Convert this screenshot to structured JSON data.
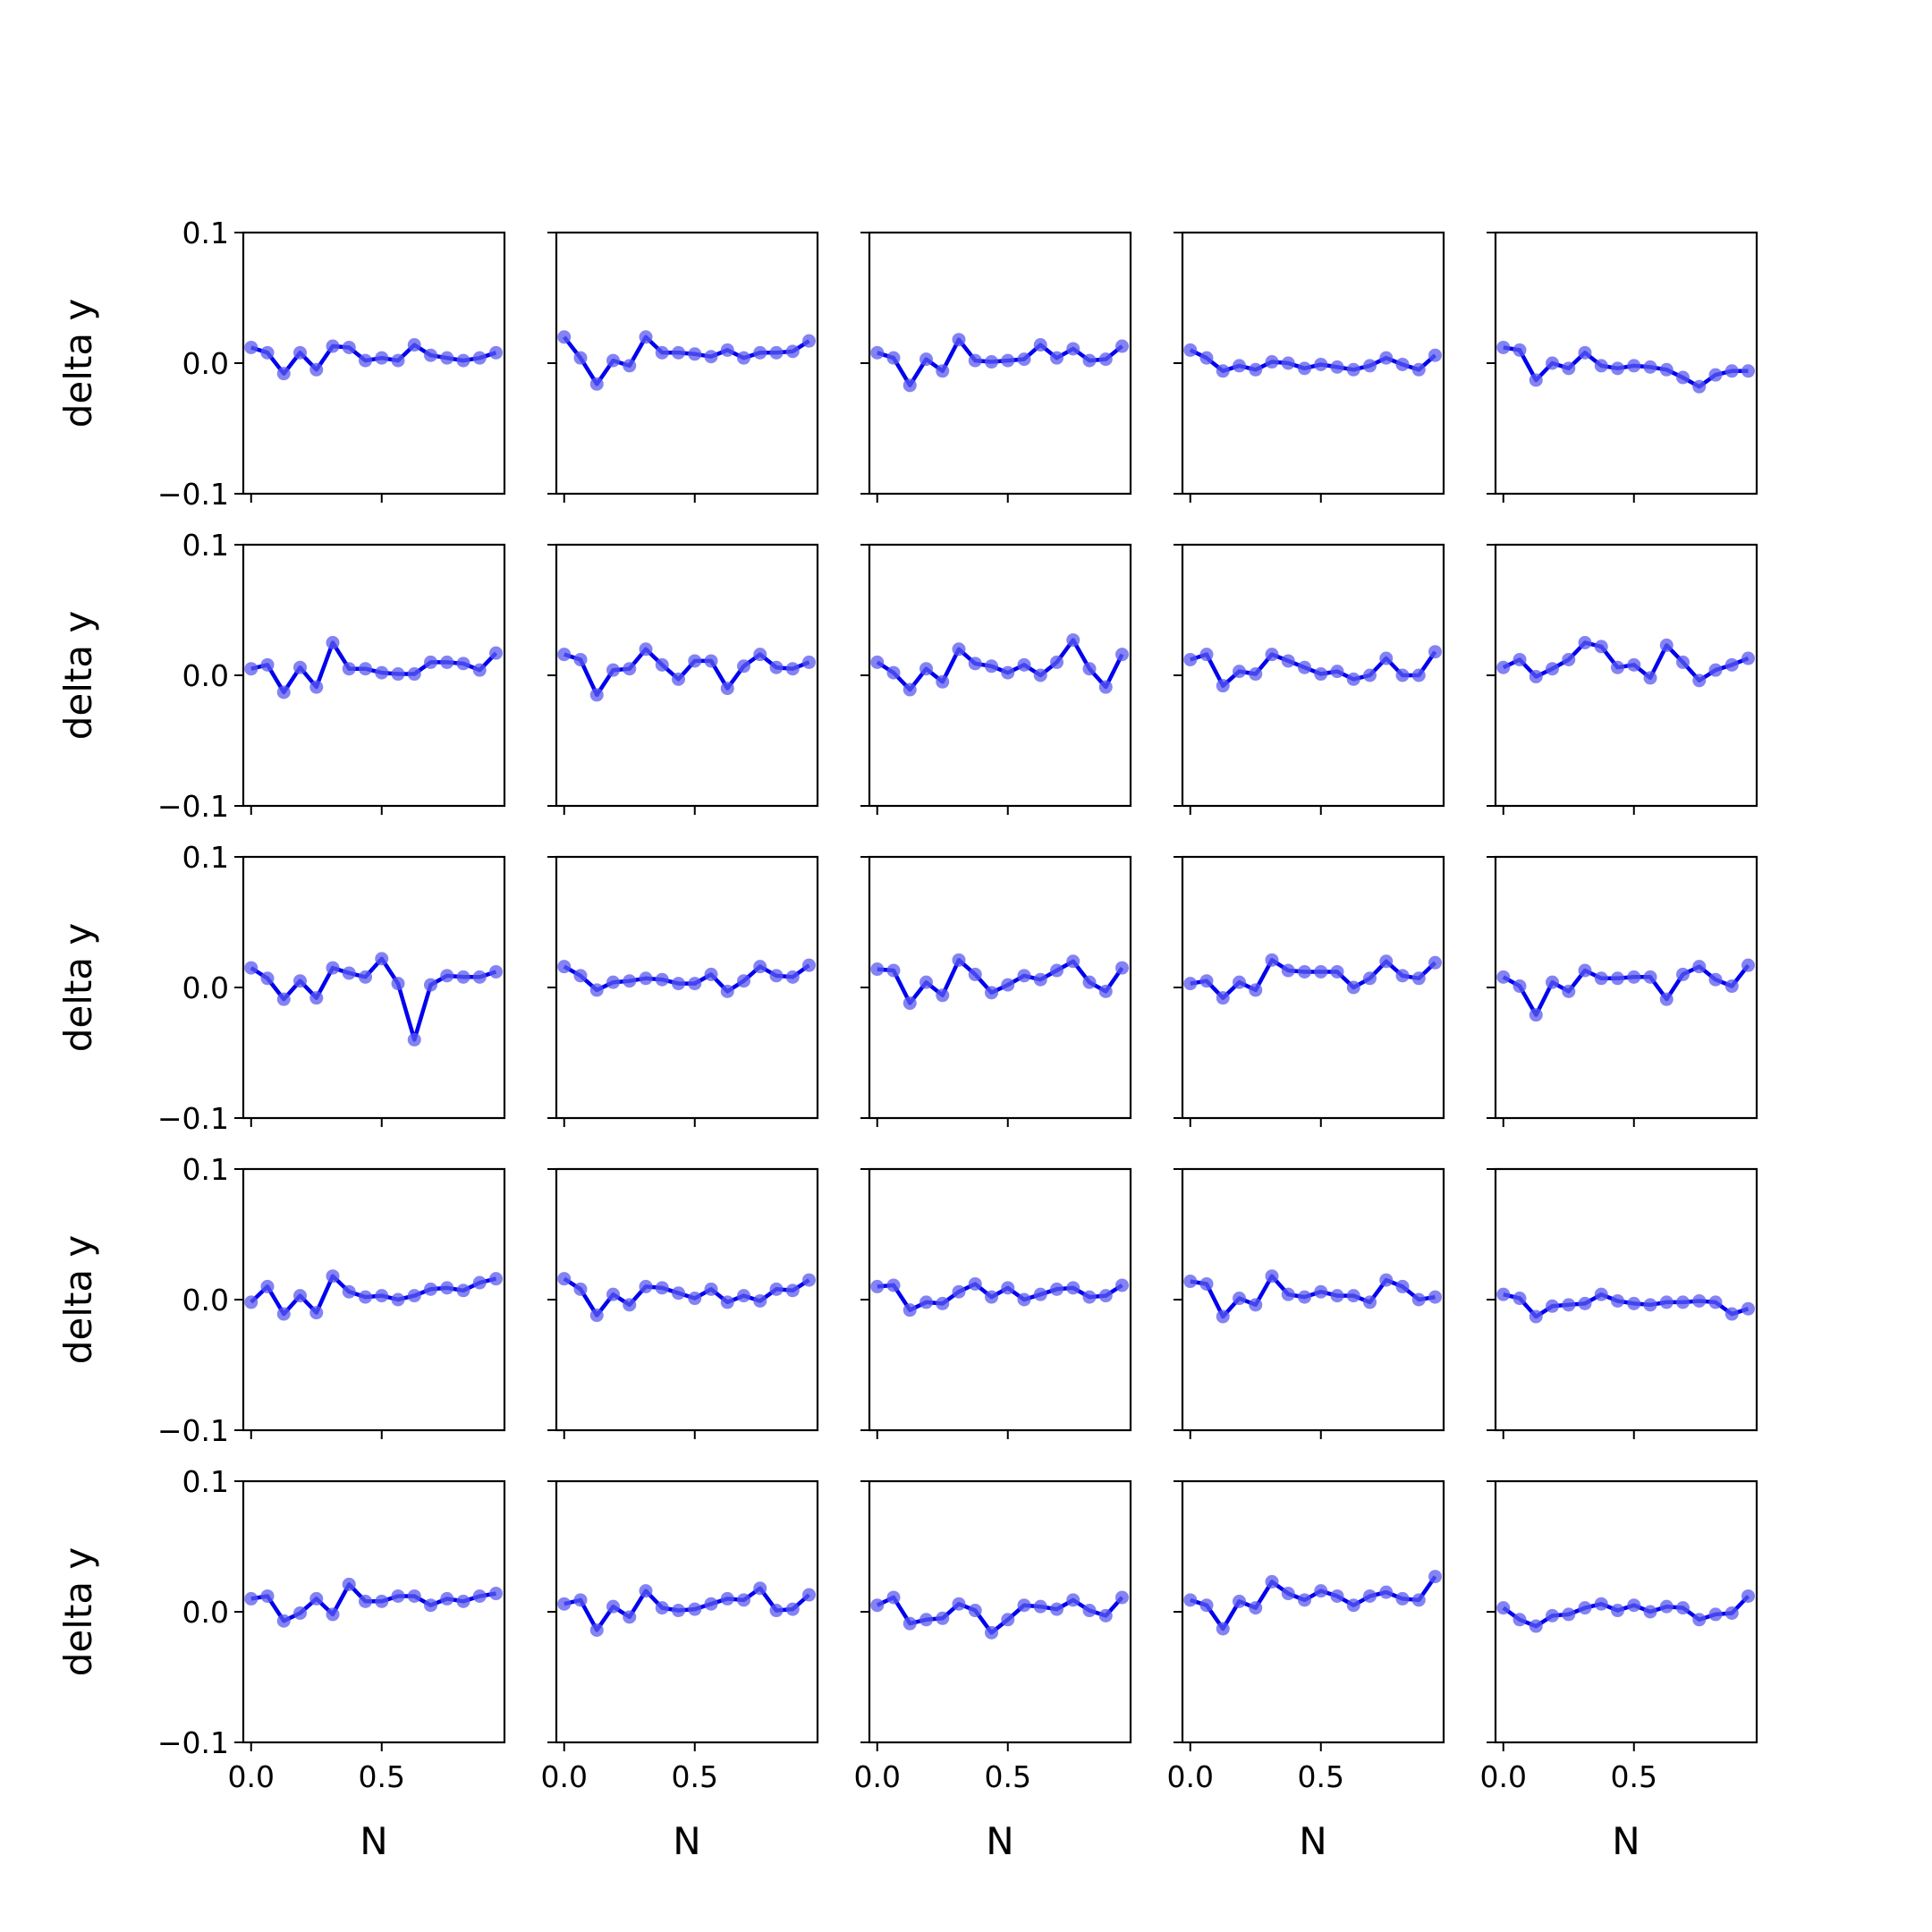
{
  "chart_data": {
    "type": "line",
    "layout": "5x5 grid of small multiples",
    "colors": {
      "line": "#0000ee",
      "marker": "#5a5af0"
    },
    "xlabel": "N",
    "ylabel": "delta y",
    "xlim": [
      -0.03,
      0.97
    ],
    "ylim": [
      -0.1,
      0.1
    ],
    "xticks": [
      0.0,
      0.5
    ],
    "xtick_labels": [
      "0.0",
      "0.5"
    ],
    "yticks": [
      -0.1,
      0.0,
      0.1
    ],
    "ytick_labels": [
      "−0.1",
      "0.0",
      "0.1"
    ],
    "x": [
      0.0,
      0.0625,
      0.125,
      0.1875,
      0.25,
      0.3125,
      0.375,
      0.4375,
      0.5,
      0.5625,
      0.625,
      0.6875,
      0.75,
      0.8125,
      0.875,
      0.9375
    ],
    "panels": [
      [
        0.012,
        0.008,
        -0.008,
        0.008,
        -0.005,
        0.013,
        0.012,
        0.002,
        0.004,
        0.002,
        0.014,
        0.006,
        0.004,
        0.002,
        0.004,
        0.008
      ],
      [
        0.02,
        0.004,
        -0.016,
        0.002,
        -0.002,
        0.02,
        0.008,
        0.008,
        0.007,
        0.005,
        0.01,
        0.004,
        0.008,
        0.008,
        0.009,
        0.017
      ],
      [
        0.008,
        0.004,
        -0.017,
        0.003,
        -0.006,
        0.018,
        0.002,
        0.001,
        0.002,
        0.003,
        0.014,
        0.004,
        0.011,
        0.002,
        0.003,
        0.013
      ],
      [
        0.01,
        0.004,
        -0.006,
        -0.002,
        -0.005,
        0.001,
        0.0,
        -0.004,
        -0.001,
        -0.003,
        -0.005,
        -0.002,
        0.004,
        -0.001,
        -0.005,
        0.006
      ],
      [
        0.012,
        0.01,
        -0.013,
        0.0,
        -0.004,
        0.008,
        -0.002,
        -0.004,
        -0.002,
        -0.003,
        -0.005,
        -0.011,
        -0.018,
        -0.009,
        -0.006,
        -0.006
      ],
      [
        0.005,
        0.008,
        -0.013,
        0.006,
        -0.009,
        0.025,
        0.005,
        0.005,
        0.002,
        0.001,
        0.001,
        0.01,
        0.01,
        0.009,
        0.004,
        0.017
      ],
      [
        0.016,
        0.012,
        -0.015,
        0.004,
        0.005,
        0.02,
        0.008,
        -0.003,
        0.011,
        0.011,
        -0.01,
        0.007,
        0.016,
        0.006,
        0.005,
        0.01
      ],
      [
        0.01,
        0.002,
        -0.011,
        0.005,
        -0.005,
        0.02,
        0.009,
        0.007,
        0.002,
        0.008,
        0.0,
        0.01,
        0.027,
        0.005,
        -0.009,
        0.016
      ],
      [
        0.012,
        0.016,
        -0.008,
        0.003,
        0.001,
        0.016,
        0.011,
        0.006,
        0.001,
        0.003,
        -0.003,
        0.0,
        0.013,
        0.0,
        0.0,
        0.018
      ],
      [
        0.006,
        0.012,
        -0.001,
        0.005,
        0.012,
        0.025,
        0.022,
        0.006,
        0.008,
        -0.002,
        0.023,
        0.01,
        -0.004,
        0.004,
        0.008,
        0.013
      ],
      [
        0.015,
        0.007,
        -0.009,
        0.005,
        -0.008,
        0.015,
        0.011,
        0.008,
        0.022,
        0.003,
        -0.04,
        0.002,
        0.009,
        0.008,
        0.008,
        0.012
      ],
      [
        0.016,
        0.009,
        -0.002,
        0.004,
        0.005,
        0.007,
        0.006,
        0.003,
        0.003,
        0.01,
        -0.003,
        0.005,
        0.016,
        0.009,
        0.008,
        0.017
      ],
      [
        0.014,
        0.013,
        -0.012,
        0.004,
        -0.006,
        0.021,
        0.01,
        -0.004,
        0.002,
        0.009,
        0.006,
        0.013,
        0.02,
        0.004,
        -0.003,
        0.015
      ],
      [
        0.003,
        0.005,
        -0.008,
        0.004,
        -0.002,
        0.021,
        0.013,
        0.012,
        0.012,
        0.012,
        0.0,
        0.007,
        0.02,
        0.009,
        0.007,
        0.019
      ],
      [
        0.008,
        0.001,
        -0.021,
        0.004,
        -0.003,
        0.013,
        0.007,
        0.007,
        0.008,
        0.008,
        -0.009,
        0.01,
        0.016,
        0.006,
        0.001,
        0.017
      ],
      [
        -0.002,
        0.01,
        -0.011,
        0.003,
        -0.01,
        0.018,
        0.006,
        0.002,
        0.003,
        0.0,
        0.003,
        0.008,
        0.009,
        0.007,
        0.013,
        0.016
      ],
      [
        0.016,
        0.008,
        -0.012,
        0.004,
        -0.004,
        0.01,
        0.009,
        0.005,
        0.001,
        0.008,
        -0.002,
        0.003,
        -0.001,
        0.008,
        0.007,
        0.015
      ],
      [
        0.01,
        0.011,
        -0.008,
        -0.002,
        -0.003,
        0.006,
        0.012,
        0.002,
        0.009,
        0.0,
        0.004,
        0.008,
        0.009,
        0.002,
        0.003,
        0.011
      ],
      [
        0.014,
        0.012,
        -0.013,
        0.001,
        -0.004,
        0.018,
        0.004,
        0.002,
        0.006,
        0.003,
        0.003,
        -0.002,
        0.015,
        0.01,
        0.0,
        0.002
      ],
      [
        0.004,
        0.001,
        -0.013,
        -0.005,
        -0.004,
        -0.003,
        0.004,
        -0.001,
        -0.003,
        -0.004,
        -0.002,
        -0.002,
        -0.001,
        -0.002,
        -0.011,
        -0.007
      ],
      [
        0.01,
        0.012,
        -0.007,
        -0.001,
        0.01,
        -0.002,
        0.021,
        0.008,
        0.008,
        0.012,
        0.012,
        0.005,
        0.01,
        0.008,
        0.012,
        0.014
      ],
      [
        0.006,
        0.009,
        -0.014,
        0.004,
        -0.004,
        0.016,
        0.003,
        0.001,
        0.002,
        0.006,
        0.01,
        0.009,
        0.018,
        0.001,
        0.002,
        0.013
      ],
      [
        0.005,
        0.011,
        -0.009,
        -0.006,
        -0.005,
        0.006,
        0.001,
        -0.016,
        -0.006,
        0.005,
        0.004,
        0.002,
        0.009,
        0.001,
        -0.003,
        0.011
      ],
      [
        0.009,
        0.005,
        -0.013,
        0.008,
        0.003,
        0.023,
        0.014,
        0.009,
        0.016,
        0.012,
        0.005,
        0.012,
        0.015,
        0.01,
        0.009,
        0.027
      ],
      [
        0.003,
        -0.006,
        -0.011,
        -0.003,
        -0.002,
        0.003,
        0.006,
        0.001,
        0.005,
        0.0,
        0.004,
        0.003,
        -0.006,
        -0.002,
        -0.001,
        0.012
      ]
    ]
  }
}
